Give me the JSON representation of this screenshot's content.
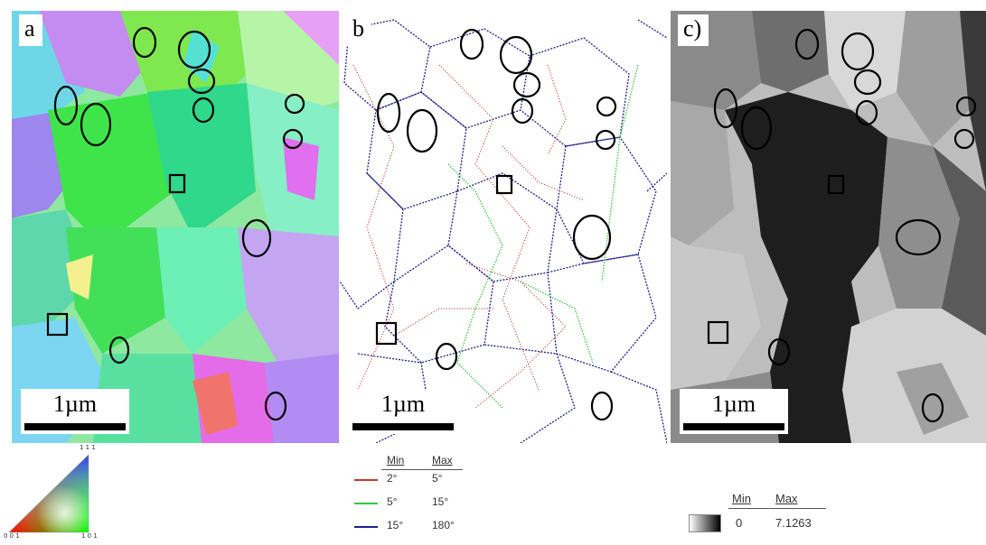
{
  "panels": {
    "a": {
      "label": "a",
      "scale_label": "1µm"
    },
    "b": {
      "label": "b",
      "scale_label": "1µm"
    },
    "c": {
      "label": "c)",
      "scale_label": "1µm"
    }
  },
  "ipf_legend": {
    "top_label": "1 1 1",
    "left_label": "0 0 1",
    "right_label": "1 0 1"
  },
  "misorientation_legend": {
    "min_header": "Min",
    "max_header": "Max",
    "rows": [
      {
        "min": "2°",
        "max": "5°",
        "color": "#c0392b"
      },
      {
        "min": "5°",
        "max": "15°",
        "color": "#2ecc40"
      },
      {
        "min": "15°",
        "max": "180°",
        "color": "#1f1f8f"
      }
    ]
  },
  "grayscale_legend": {
    "min_header": "Min",
    "max_header": "Max",
    "min_value": "0",
    "max_value": "7.1263"
  },
  "colors": {
    "ipf_green": "#3ee35c",
    "ipf_cyan": "#7ff0d4",
    "ipf_magenta": "#e070f0",
    "boundary_red": "#c0392b",
    "boundary_green": "#2ecc40",
    "boundary_blue": "#1f1f8f",
    "kam_dark": "#1e1e1e",
    "kam_light": "#cfcfcf"
  }
}
